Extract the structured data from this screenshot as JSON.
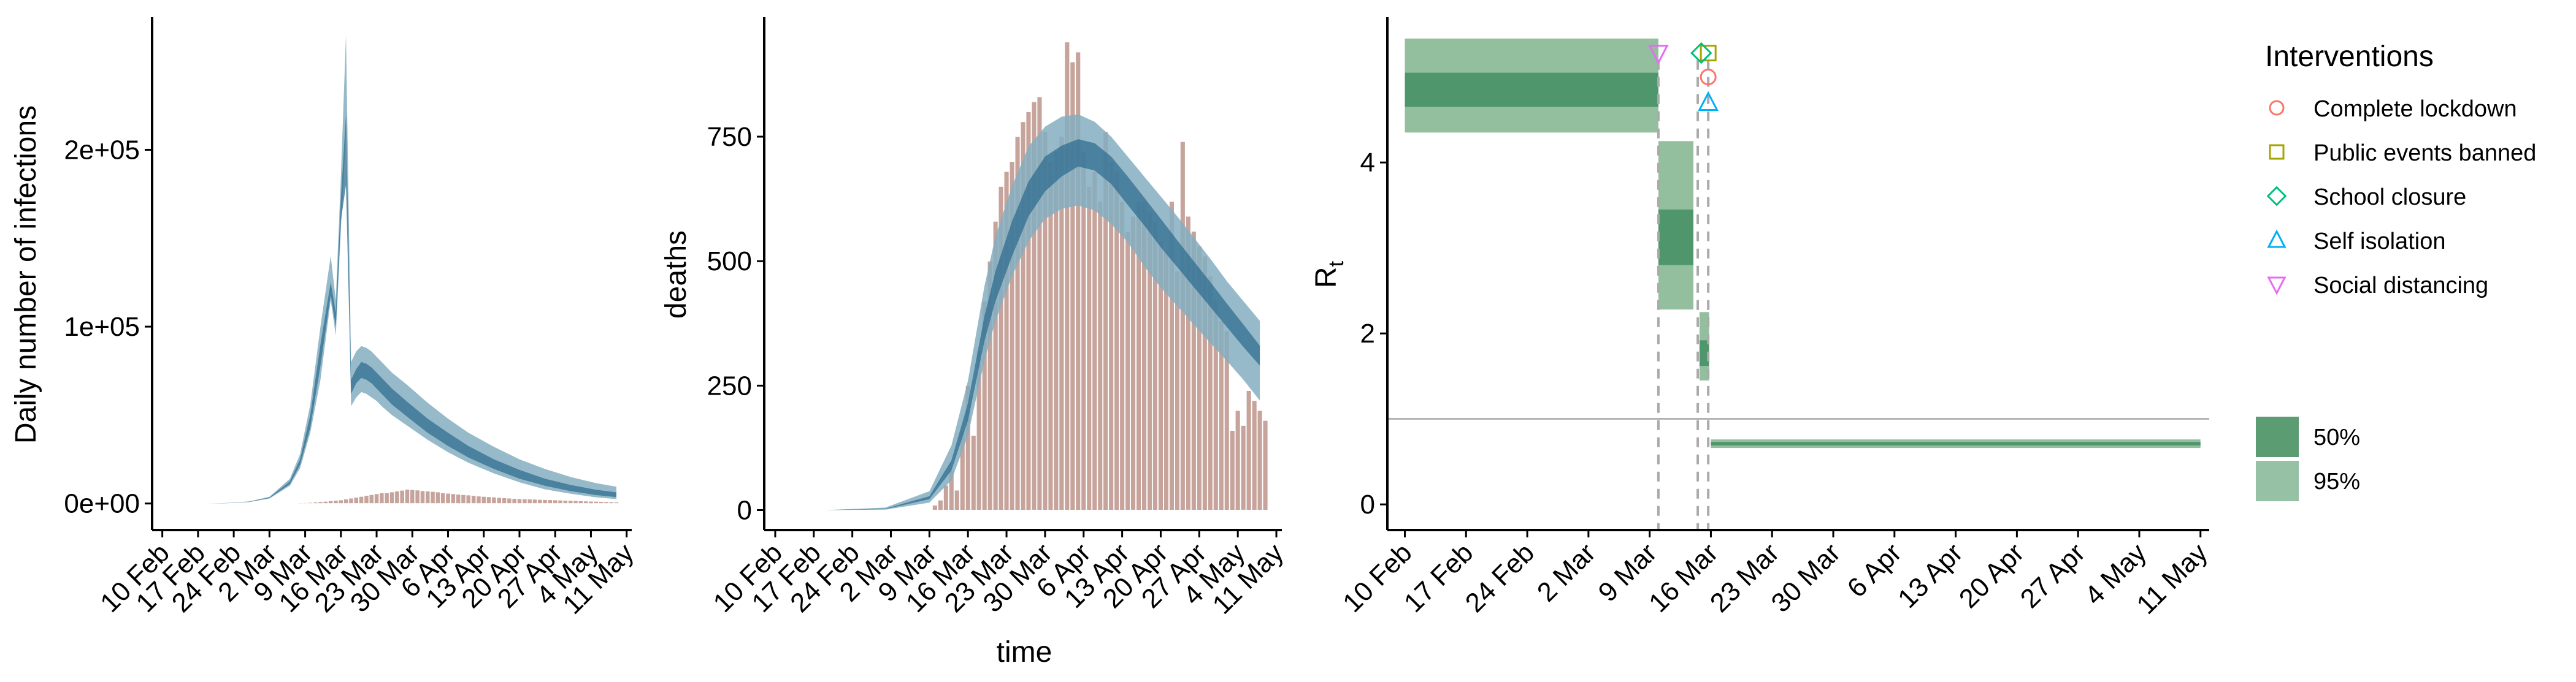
{
  "colors": {
    "band95": "#84aebf",
    "band50": "#2f6d8f",
    "bar": "#c6a39b",
    "bar_stroke": "#ffffff",
    "rt95": "#93bf9f",
    "rt50": "#4f966c",
    "rt_line": "#8c8c8c",
    "dash": "#aaaaaa",
    "ci50_legend": "#5c9c73",
    "ci95_legend": "#96c1a5",
    "marker_complete_lockdown": "#f8766d",
    "marker_public_events_banned": "#a3a500",
    "marker_school_closure": "#00bf7d",
    "marker_self_isolation": "#00b0f6",
    "marker_social_distancing": "#e76bf3"
  },
  "chart_data": [
    {
      "id": "infections",
      "type": "area",
      "xlabel": "",
      "ylabel": "Daily number of infections",
      "x_ticks": [
        "10 Feb",
        "17 Feb",
        "24 Feb",
        "2 Mar",
        "9 Mar",
        "16 Mar",
        "23 Mar",
        "30 Mar",
        "6 Apr",
        "13 Apr",
        "20 Apr",
        "27 Apr",
        "4 May",
        "11 May"
      ],
      "y_ticks": [
        "0e+00",
        "1e+05",
        "2e+05"
      ],
      "ylim": [
        -15000,
        275000
      ],
      "x_day0": "10 Feb",
      "xlim": [
        -2,
        92
      ],
      "band_x": [
        9,
        13,
        17,
        21,
        25,
        27,
        29,
        31,
        33,
        34,
        35,
        36,
        37,
        38,
        39,
        40,
        41,
        42,
        43,
        45,
        48,
        52,
        56,
        60,
        65,
        70,
        75,
        80,
        85,
        89
      ],
      "lo95": [
        0,
        200,
        800,
        2800,
        10000,
        20000,
        40000,
        70000,
        115000,
        95000,
        155000,
        210000,
        55000,
        60000,
        63000,
        62000,
        60000,
        58000,
        55000,
        50000,
        44000,
        36000,
        29000,
        23000,
        17000,
        12000,
        8000,
        5500,
        3500,
        2500
      ],
      "lo50": [
        0,
        250,
        900,
        3100,
        11000,
        22000,
        43000,
        78000,
        118000,
        100000,
        160000,
        180000,
        62000,
        68000,
        71000,
        70000,
        68000,
        65000,
        62000,
        56000,
        49000,
        40000,
        32500,
        26000,
        19500,
        14000,
        10000,
        7000,
        4800,
        3600
      ],
      "hi50": [
        0,
        300,
        1050,
        3400,
        12500,
        25000,
        50000,
        90000,
        125000,
        108000,
        172000,
        220000,
        70000,
        76000,
        80000,
        79000,
        77000,
        74000,
        71000,
        65000,
        57500,
        48000,
        40000,
        32500,
        25000,
        19000,
        14000,
        10500,
        7800,
        6300
      ],
      "hi95": [
        0,
        350,
        1200,
        3800,
        14000,
        28000,
        56000,
        100000,
        140000,
        115000,
        185000,
        265000,
        80000,
        86000,
        89000,
        88000,
        86000,
        83000,
        80000,
        74000,
        67000,
        57000,
        48000,
        40000,
        32000,
        25000,
        19500,
        15000,
        11500,
        9500
      ],
      "bar_x": [
        26,
        27,
        28,
        29,
        30,
        31,
        32,
        33,
        34,
        35,
        36,
        37,
        38,
        39,
        40,
        41,
        42,
        43,
        44,
        45,
        46,
        47,
        48,
        49,
        50,
        51,
        52,
        53,
        54,
        55,
        56,
        57,
        58,
        59,
        60,
        61,
        62,
        63,
        64,
        65,
        66,
        67,
        68,
        69,
        70,
        71,
        72,
        73,
        74,
        75,
        76,
        77,
        78,
        79,
        80,
        81,
        82,
        83,
        84,
        85,
        86,
        87,
        88,
        89
      ],
      "bars": [
        300,
        400,
        500,
        600,
        800,
        1000,
        1200,
        1500,
        1800,
        2000,
        2500,
        3000,
        3500,
        4000,
        4500,
        5000,
        5500,
        6000,
        6000,
        6500,
        7000,
        7500,
        8000,
        7800,
        7600,
        7200,
        7000,
        6800,
        6500,
        6000,
        5800,
        5500,
        5200,
        5000,
        4800,
        4500,
        4200,
        4000,
        3800,
        3600,
        3400,
        3200,
        3000,
        2800,
        2700,
        2600,
        2500,
        2400,
        2300,
        2200,
        2100,
        2000,
        1900,
        1800,
        1700,
        1600,
        1500,
        1400,
        1300,
        1200,
        1100,
        1000,
        900,
        800
      ]
    },
    {
      "id": "deaths",
      "type": "bar",
      "xlabel": "time",
      "ylabel": "deaths",
      "x_ticks": [
        "10 Feb",
        "17 Feb",
        "24 Feb",
        "2 Mar",
        "9 Mar",
        "16 Mar",
        "23 Mar",
        "30 Mar",
        "6 Apr",
        "13 Apr",
        "20 Apr",
        "27 Apr",
        "4 May",
        "11 May"
      ],
      "y_ticks": [
        "0",
        "250",
        "500",
        "750"
      ],
      "ylim": [
        -40,
        990
      ],
      "x_day0": "10 Feb",
      "xlim": [
        -2,
        92
      ],
      "band_x": [
        9,
        20,
        28,
        32,
        35,
        38,
        40,
        43,
        46,
        49,
        52,
        55,
        58,
        61,
        64,
        67,
        70,
        73,
        76,
        79,
        82,
        85,
        88
      ],
      "lo95": [
        0,
        1,
        15,
        60,
        150,
        300,
        380,
        470,
        540,
        585,
        605,
        612,
        602,
        575,
        538,
        490,
        447,
        410,
        373,
        336,
        300,
        262,
        220
      ],
      "lo50": [
        0,
        2,
        22,
        80,
        180,
        340,
        420,
        510,
        590,
        640,
        670,
        690,
        682,
        655,
        613,
        572,
        528,
        488,
        448,
        408,
        368,
        328,
        290
      ],
      "hi50": [
        0,
        3,
        28,
        100,
        215,
        390,
        480,
        580,
        660,
        710,
        732,
        745,
        737,
        710,
        670,
        628,
        585,
        542,
        500,
        458,
        415,
        373,
        330
      ],
      "hi95": [
        0,
        5,
        38,
        130,
        260,
        450,
        550,
        650,
        730,
        770,
        790,
        795,
        780,
        750,
        710,
        670,
        630,
        590,
        548,
        505,
        460,
        420,
        380
      ],
      "bar_x": [
        29,
        30,
        31,
        32,
        33,
        34,
        35,
        36,
        37,
        38,
        39,
        40,
        41,
        42,
        43,
        44,
        45,
        46,
        47,
        48,
        49,
        50,
        51,
        52,
        53,
        54,
        55,
        56,
        57,
        58,
        59,
        60,
        61,
        62,
        63,
        64,
        65,
        66,
        67,
        68,
        69,
        70,
        71,
        72,
        73,
        74,
        75,
        76,
        77,
        78,
        79,
        80,
        81,
        82,
        83,
        84,
        85,
        86,
        87,
        88,
        89
      ],
      "bars": [
        10,
        20,
        50,
        80,
        40,
        160,
        250,
        150,
        320,
        420,
        500,
        580,
        650,
        680,
        700,
        750,
        780,
        800,
        820,
        830,
        760,
        700,
        720,
        750,
        940,
        900,
        920,
        720,
        650,
        680,
        620,
        760,
        700,
        680,
        620,
        560,
        590,
        620,
        620,
        600,
        580,
        540,
        520,
        620,
        480,
        740,
        590,
        560,
        530,
        510,
        470,
        420,
        380,
        360,
        160,
        200,
        170,
        240,
        220,
        200,
        180
      ]
    },
    {
      "id": "rt",
      "type": "area",
      "xlabel": "",
      "ylabel": "R",
      "ylabel_sub": "t",
      "x_ticks": [
        "10 Feb",
        "17 Feb",
        "24 Feb",
        "2 Mar",
        "9 Mar",
        "16 Mar",
        "23 Mar",
        "30 Mar",
        "6 Apr",
        "13 Apr",
        "20 Apr",
        "27 Apr",
        "4 May",
        "11 May"
      ],
      "y_ticks": [
        "0",
        "2",
        "4"
      ],
      "ylim": [
        -0.3,
        5.7
      ],
      "x_day0": "10 Feb",
      "xlim": [
        -2,
        92
      ],
      "hline": 1,
      "segments": [
        {
          "x0": 0,
          "x1": 29,
          "lo95": 4.35,
          "lo50": 4.65,
          "hi50": 5.05,
          "hi95": 5.45
        },
        {
          "x0": 29,
          "x1": 33,
          "lo95": 2.28,
          "lo50": 2.8,
          "hi50": 3.45,
          "hi95": 4.25
        },
        {
          "x0": 33.7,
          "x1": 34.8,
          "lo95": 1.45,
          "lo50": 1.62,
          "hi50": 1.92,
          "hi95": 2.25
        },
        {
          "x0": 35,
          "x1": 91,
          "lo95": 0.66,
          "lo50": 0.69,
          "hi50": 0.73,
          "hi95": 0.76
        }
      ],
      "dashed_lines": [
        29,
        33.5,
        34.7
      ],
      "markers": [
        {
          "name": "Complete lockdown",
          "x": 34.7,
          "y": 5.0,
          "shape": "circle"
        },
        {
          "name": "Public events banned",
          "x": 34.7,
          "y": 5.28,
          "shape": "square"
        },
        {
          "name": "School closure",
          "x": 33.9,
          "y": 5.28,
          "shape": "diamond"
        },
        {
          "name": "Self isolation",
          "x": 34.7,
          "y": 4.7,
          "shape": "triangle"
        },
        {
          "name": "Social distancing",
          "x": 29.0,
          "y": 5.28,
          "shape": "triangle-down"
        }
      ],
      "legend_interventions_title": "Interventions",
      "legend_interventions": [
        {
          "label": "Complete lockdown",
          "shape": "circle",
          "color_key": "marker_complete_lockdown"
        },
        {
          "label": "Public events banned",
          "shape": "square",
          "color_key": "marker_public_events_banned"
        },
        {
          "label": "School closure",
          "shape": "diamond",
          "color_key": "marker_school_closure"
        },
        {
          "label": "Self isolation",
          "shape": "triangle",
          "color_key": "marker_self_isolation"
        },
        {
          "label": "Social distancing",
          "shape": "triangle-down",
          "color_key": "marker_social_distancing"
        }
      ],
      "legend_ci": [
        {
          "label": "50%",
          "color_key": "ci50_legend"
        },
        {
          "label": "95%",
          "color_key": "ci95_legend"
        }
      ]
    }
  ]
}
